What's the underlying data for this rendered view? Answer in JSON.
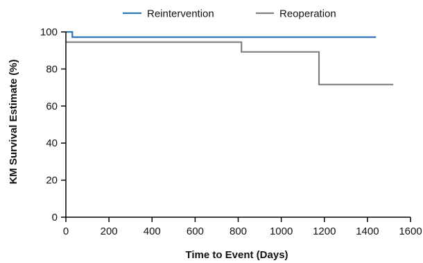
{
  "chart_data": {
    "type": "line",
    "step": true,
    "title": "",
    "xlabel": "Time to Event (Days)",
    "ylabel": "KM Survival Estimate (%)",
    "xlim": [
      0,
      1600
    ],
    "ylim": [
      0,
      100
    ],
    "xticks": [
      0,
      200,
      400,
      600,
      800,
      1000,
      1200,
      1400,
      1600
    ],
    "yticks": [
      0,
      20,
      40,
      60,
      80,
      100
    ],
    "legend_position": "top",
    "grid": false,
    "series": [
      {
        "name": "Reintervention",
        "color": "#2e75b6",
        "x": [
          0,
          30,
          30,
          1440
        ],
        "y": [
          100,
          100,
          97.2,
          97.2
        ]
      },
      {
        "name": "Reoperation",
        "color": "#7f7f7f",
        "x": [
          0,
          815,
          815,
          1175,
          1175,
          1520
        ],
        "y": [
          94.5,
          94.5,
          89.2,
          89.2,
          71.6,
          71.6
        ]
      }
    ]
  }
}
